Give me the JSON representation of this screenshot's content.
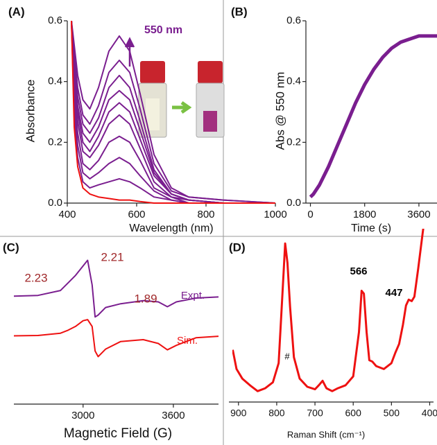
{
  "chart_data": [
    {
      "type": "line",
      "panel": "(A)",
      "xlabel": "Wavelength (nm)",
      "ylabel": "Absorbance",
      "annotations": [
        "550 nm"
      ],
      "x": [
        412,
        420,
        430,
        445,
        465,
        490,
        520,
        550,
        580,
        610,
        650,
        700,
        750,
        850,
        1000
      ],
      "series": [
        {
          "color": "#7a1e8f",
          "values": [
            0.6,
            0.52,
            0.42,
            0.34,
            0.31,
            0.38,
            0.5,
            0.55,
            0.5,
            0.36,
            0.16,
            0.05,
            0.02,
            0.01,
            0
          ]
        },
        {
          "color": "#7a1e8f",
          "values": [
            0.6,
            0.49,
            0.38,
            0.29,
            0.26,
            0.32,
            0.43,
            0.47,
            0.43,
            0.31,
            0.13,
            0.04,
            0.02,
            0.01,
            0
          ]
        },
        {
          "color": "#7a1e8f",
          "values": [
            0.6,
            0.47,
            0.35,
            0.26,
            0.23,
            0.28,
            0.38,
            0.42,
            0.38,
            0.27,
            0.11,
            0.03,
            0.01,
            0,
            0
          ]
        },
        {
          "color": "#7a1e8f",
          "values": [
            0.6,
            0.45,
            0.32,
            0.23,
            0.2,
            0.25,
            0.34,
            0.37,
            0.34,
            0.24,
            0.1,
            0.03,
            0.01,
            0,
            0
          ]
        },
        {
          "color": "#7a1e8f",
          "values": [
            0.6,
            0.43,
            0.3,
            0.2,
            0.17,
            0.22,
            0.3,
            0.33,
            0.3,
            0.21,
            0.09,
            0.03,
            0.01,
            0,
            0
          ]
        },
        {
          "color": "#7a1e8f",
          "values": [
            0.6,
            0.41,
            0.27,
            0.17,
            0.15,
            0.19,
            0.26,
            0.29,
            0.26,
            0.18,
            0.07,
            0.02,
            0.01,
            0,
            0
          ]
        },
        {
          "color": "#7a1e8f",
          "values": [
            0.6,
            0.37,
            0.23,
            0.13,
            0.11,
            0.14,
            0.2,
            0.22,
            0.2,
            0.14,
            0.05,
            0.02,
            0,
            0,
            0
          ]
        },
        {
          "color": "#7a1e8f",
          "values": [
            0.6,
            0.33,
            0.19,
            0.1,
            0.08,
            0.1,
            0.13,
            0.15,
            0.13,
            0.09,
            0.04,
            0.01,
            0,
            0,
            0
          ]
        },
        {
          "color": "#7a1e8f",
          "values": [
            0.6,
            0.29,
            0.15,
            0.07,
            0.05,
            0.06,
            0.07,
            0.08,
            0.07,
            0.05,
            0.02,
            0.01,
            0,
            0,
            0
          ]
        },
        {
          "color": "#ee1111",
          "values": [
            0.6,
            0.25,
            0.12,
            0.05,
            0.03,
            0.02,
            0.015,
            0.01,
            0.01,
            0.005,
            0,
            0,
            0,
            0,
            0
          ]
        }
      ],
      "xlim": [
        400,
        1000
      ],
      "xticks": [
        400,
        600,
        800,
        1000
      ],
      "ylim": [
        0,
        0.6
      ],
      "yticks": [
        {
          "value": 0,
          "label": "0.0"
        },
        0.2,
        0.4,
        0.6
      ]
    },
    {
      "type": "line",
      "panel": "(B)",
      "xlabel": "Time (s)",
      "ylabel": "Abs @ 550 nm",
      "x": [
        0,
        100,
        300,
        600,
        900,
        1200,
        1500,
        1800,
        2100,
        2400,
        2700,
        3000,
        3300,
        3600,
        3900,
        4200
      ],
      "series": [
        {
          "color": "#7a1e8f",
          "values": [
            0.02,
            0.03,
            0.06,
            0.12,
            0.19,
            0.26,
            0.33,
            0.39,
            0.44,
            0.48,
            0.51,
            0.53,
            0.54,
            0.55,
            0.55,
            0.55
          ]
        }
      ],
      "xlim": [
        -150,
        4200
      ],
      "xticks": [
        0,
        1800,
        3600
      ],
      "ylim": [
        0,
        0.6
      ],
      "yticks": [
        {
          "value": 0,
          "label": "0.0"
        },
        0.2,
        0.4,
        0.6
      ]
    },
    {
      "type": "line",
      "panel": "(C)",
      "xlabel": "Magnetic Field (G)",
      "annotations": [
        "2.23",
        "2.21",
        "1.89",
        "Expt.",
        "Sim."
      ],
      "x": [
        2540,
        2700,
        2850,
        2900,
        2950,
        3000,
        3030,
        3060,
        3080,
        3100,
        3150,
        3250,
        3400,
        3500,
        3560,
        3620,
        3750,
        3900
      ],
      "series": [
        {
          "color": "#7a1e8f",
          "values": [
            0,
            0.02,
            0.15,
            0.35,
            0.55,
            0.8,
            0.95,
            0.3,
            -0.55,
            -0.5,
            -0.3,
            -0.2,
            -0.12,
            -0.15,
            -0.28,
            -0.15,
            -0.05,
            -0.02
          ]
        },
        {
          "color": "#ee1111",
          "values": [
            -1.05,
            -1.04,
            -0.98,
            -0.9,
            -0.8,
            -0.65,
            -0.62,
            -0.8,
            -1.45,
            -1.6,
            -1.4,
            -1.2,
            -1.15,
            -1.25,
            -1.42,
            -1.3,
            -1.1,
            -1.06
          ]
        }
      ],
      "xlim": [
        2540,
        3900
      ],
      "xticks": [
        3000,
        3600
      ],
      "ylim": [
        -2.8,
        1.6
      ]
    },
    {
      "type": "line",
      "panel": "(D)",
      "xlabel": "Raman Shift (cm⁻¹)",
      "annotations": [
        "566",
        "447",
        "#"
      ],
      "x": [
        915,
        905,
        890,
        870,
        850,
        830,
        810,
        795,
        785,
        778,
        772,
        765,
        755,
        740,
        720,
        700,
        690,
        680,
        670,
        655,
        640,
        620,
        600,
        585,
        578,
        572,
        565,
        558,
        550,
        540,
        520,
        500,
        490,
        480,
        470,
        462,
        455,
        447,
        440,
        430,
        420,
        412
      ],
      "series": [
        {
          "color": "#ee1111",
          "values": [
            0.28,
            0.15,
            0.085,
            0.04,
            0,
            0.02,
            0.06,
            0.19,
            0.66,
            1,
            0.87,
            0.57,
            0.23,
            0.085,
            0.03,
            0.013,
            0.04,
            0.07,
            0.02,
            0,
            0.02,
            0.04,
            0.1,
            0.4,
            0.68,
            0.66,
            0.4,
            0.21,
            0.2,
            0.17,
            0.15,
            0.19,
            0.26,
            0.32,
            0.45,
            0.58,
            0.62,
            0.61,
            0.64,
            0.83,
            1.04,
            1.2
          ]
        }
      ],
      "xlim": [
        925,
        390
      ],
      "xticks": [
        900,
        800,
        700,
        600,
        500,
        400
      ],
      "ylim": [
        -0.05,
        1.1
      ]
    }
  ]
}
